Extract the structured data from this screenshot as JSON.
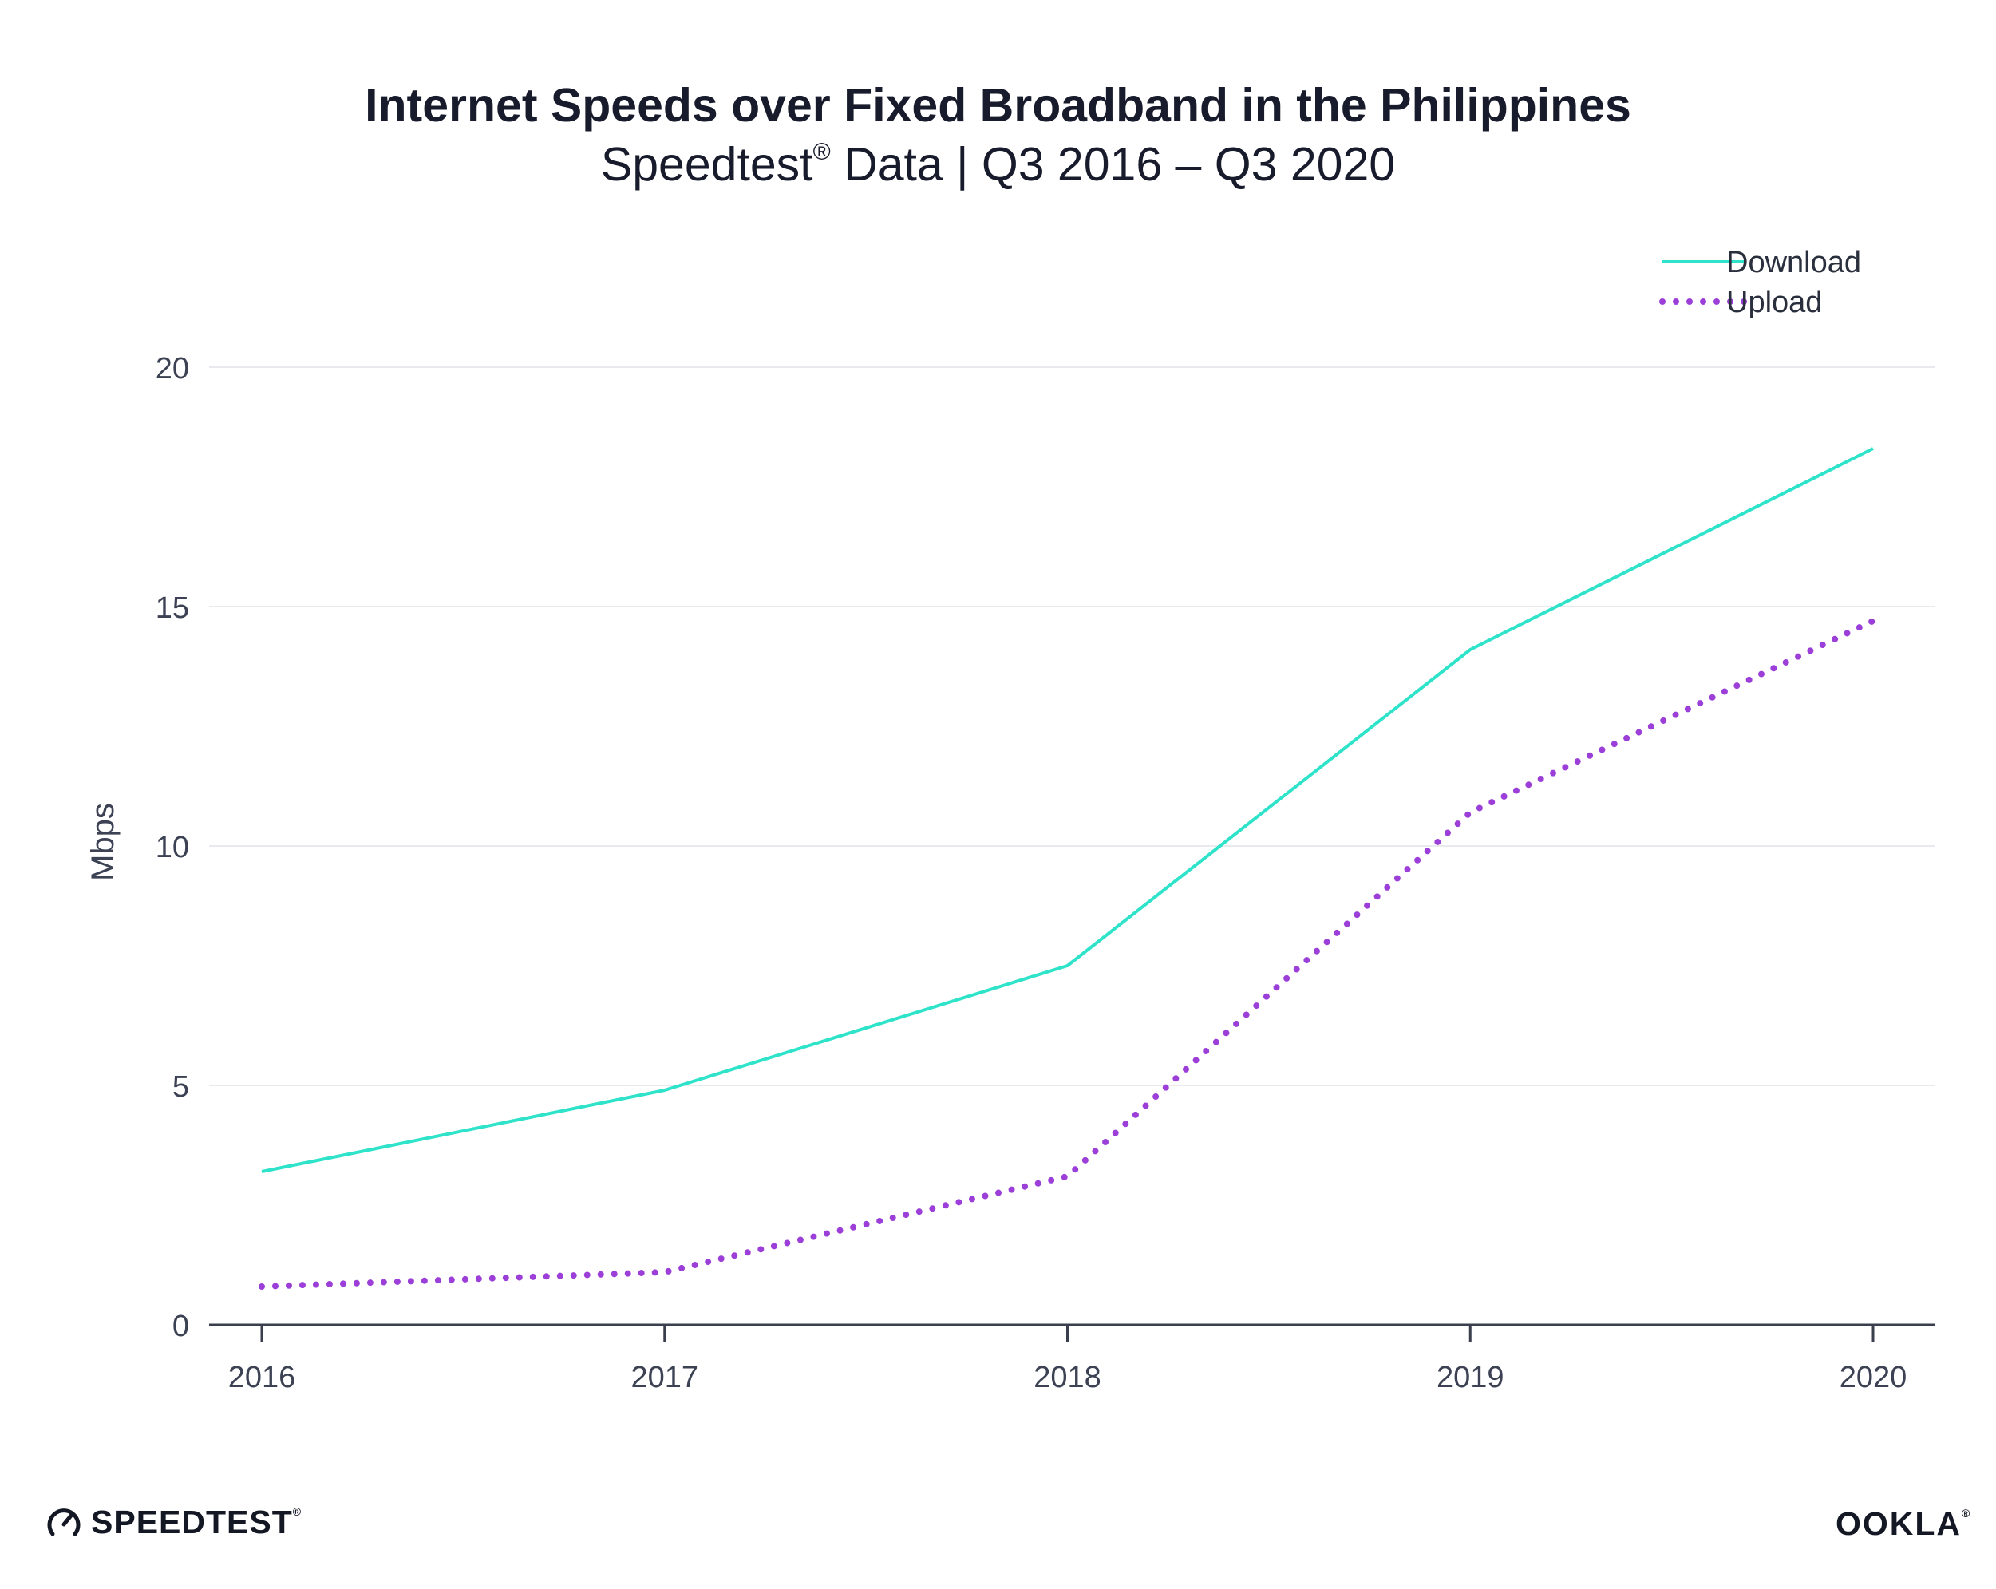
{
  "header": {
    "title": "Internet Speeds over Fixed Broadband in the Philippines",
    "subtitle_pre": "Speedtest",
    "subtitle_reg": "®",
    "subtitle_post": " Data | Q3 2016 – Q3 2020"
  },
  "chart_data": {
    "type": "line",
    "title": "Internet Speeds over Fixed Broadband in the Philippines",
    "subtitle": "Speedtest® Data | Q3 2016 – Q3 2020",
    "xlabel": "",
    "ylabel": "Mbps",
    "categories": [
      "2016",
      "2017",
      "2018",
      "2019",
      "2020"
    ],
    "ylim": [
      0,
      20
    ],
    "yticks": [
      "0",
      "5",
      "10",
      "15",
      "20"
    ],
    "grid": true,
    "legend_position": "top-right",
    "series": [
      {
        "name": "Download",
        "values": [
          3.2,
          4.9,
          7.5,
          14.1,
          18.3
        ],
        "color": "#2ee3c9",
        "style": "solid"
      },
      {
        "name": "Upload",
        "values": [
          0.8,
          1.1,
          3.1,
          10.7,
          14.7
        ],
        "color": "#9b3fd8",
        "style": "dotted"
      }
    ]
  },
  "footer": {
    "left_brand": "SPEEDTEST",
    "left_mark": "®",
    "right_brand": "OOKLA",
    "right_mark": "®"
  }
}
